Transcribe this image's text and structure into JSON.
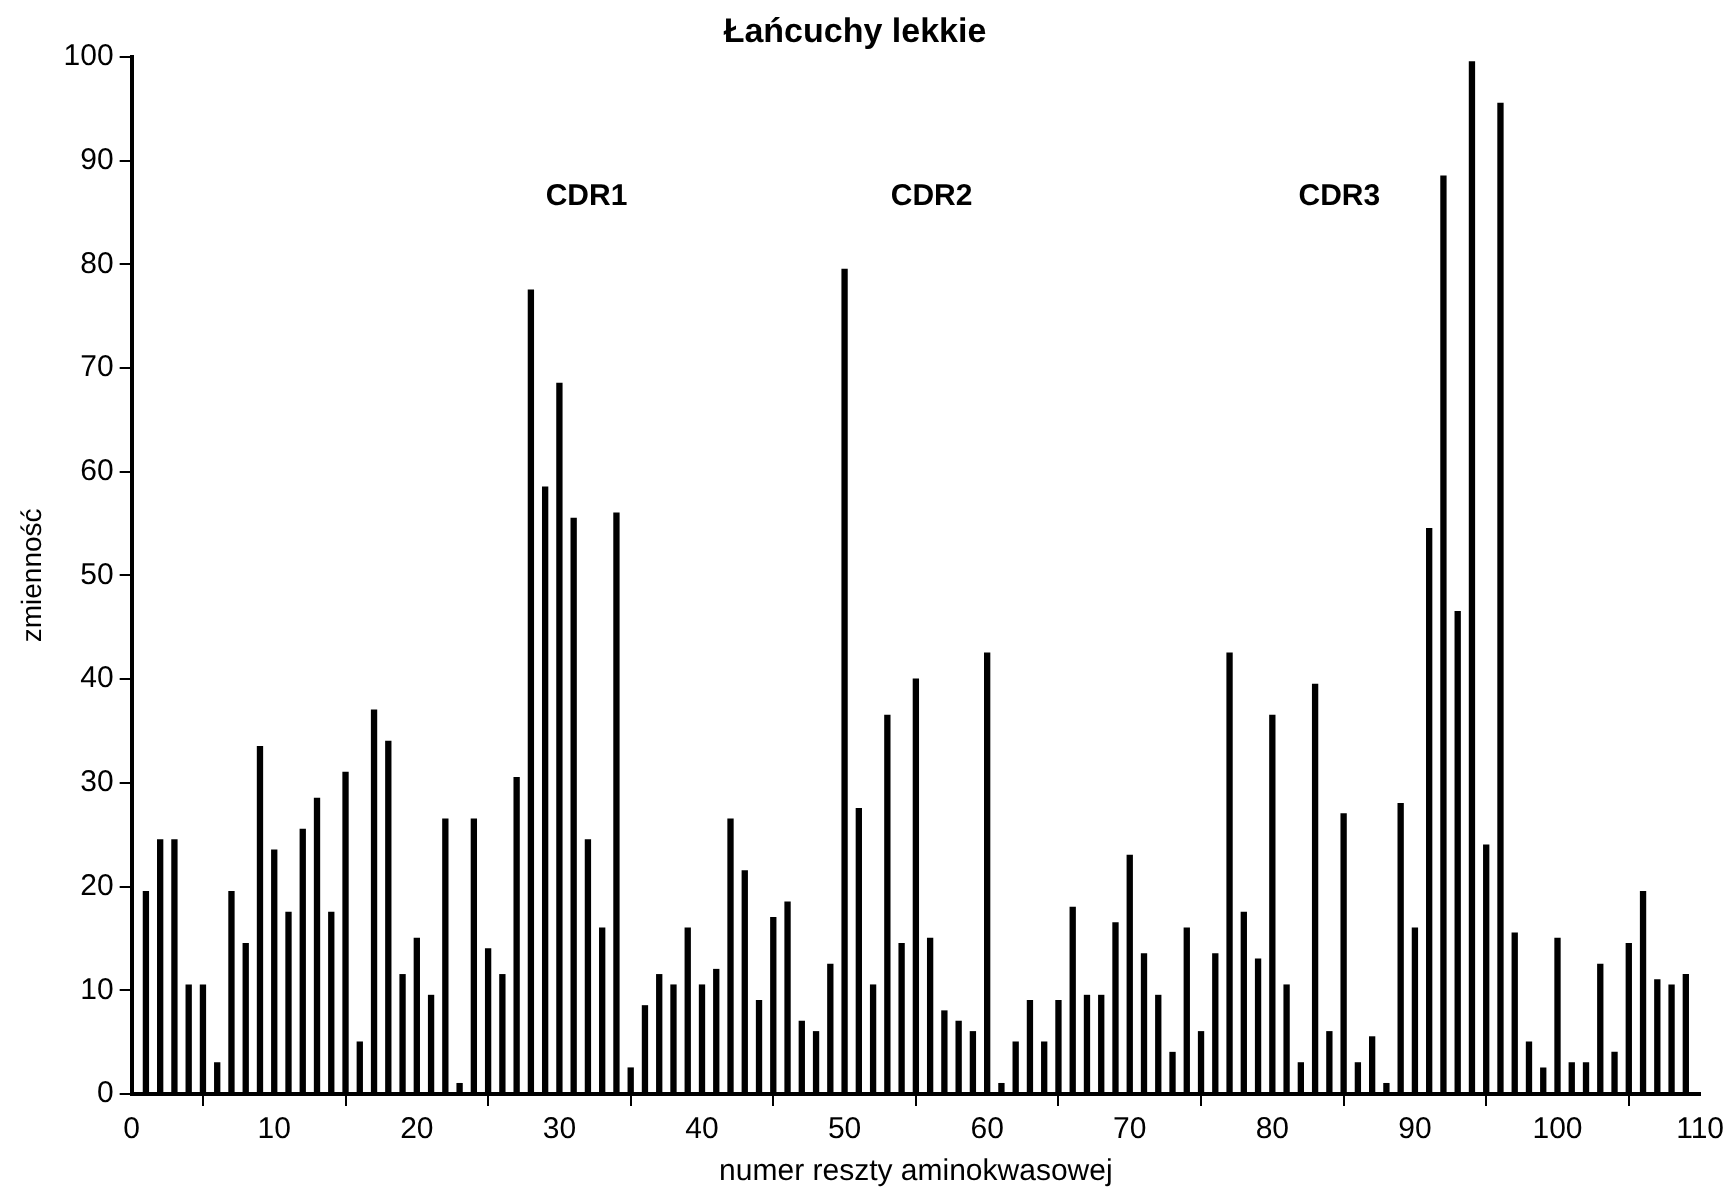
{
  "chart_data": {
    "type": "bar",
    "title": "Łańcuchy lekkie",
    "xlabel": "numer reszty aminokwasowej",
    "ylabel": "zmienność",
    "x": [
      1,
      2,
      3,
      4,
      5,
      6,
      7,
      8,
      9,
      10,
      11,
      12,
      13,
      14,
      15,
      16,
      17,
      18,
      19,
      20,
      21,
      22,
      23,
      24,
      25,
      26,
      27,
      28,
      29,
      30,
      31,
      32,
      33,
      34,
      35,
      36,
      37,
      38,
      39,
      40,
      41,
      42,
      43,
      44,
      45,
      46,
      47,
      48,
      49,
      50,
      51,
      52,
      53,
      54,
      55,
      56,
      57,
      58,
      59,
      60,
      61,
      62,
      63,
      64,
      65,
      66,
      67,
      68,
      69,
      70,
      71,
      72,
      73,
      74,
      75,
      76,
      77,
      78,
      79,
      80,
      81,
      82,
      83,
      84,
      85,
      86,
      87,
      88,
      89,
      90,
      91,
      92,
      93,
      94,
      95,
      96,
      97,
      98,
      99,
      100,
      101,
      102,
      103,
      104,
      105,
      106,
      107,
      108,
      109
    ],
    "values": [
      19.5,
      24.5,
      24.5,
      10.5,
      10.5,
      3,
      19.5,
      14.5,
      33.5,
      23.5,
      17.5,
      25.5,
      28.5,
      17.5,
      31,
      5,
      37,
      34,
      11.5,
      15,
      9.5,
      26.5,
      1,
      26.5,
      14,
      11.5,
      30.5,
      77.5,
      58.5,
      68.5,
      55.5,
      24.5,
      16,
      56,
      2.5,
      8.5,
      11.5,
      10.5,
      16,
      10.5,
      12,
      26.5,
      21.5,
      9,
      17,
      18.5,
      7,
      6,
      12.5,
      79.5,
      27.5,
      10.5,
      36.5,
      14.5,
      40,
      15,
      8,
      7,
      6,
      42.5,
      1,
      5,
      9,
      5,
      9,
      18,
      9.5,
      9.5,
      16.5,
      23,
      13.5,
      9.5,
      4,
      16,
      6,
      13.5,
      42.5,
      17.5,
      13,
      36.5,
      10.5,
      3,
      39.5,
      6,
      27,
      3,
      5.5,
      1,
      28,
      16,
      54.5,
      88.5,
      46.5,
      99.5,
      24,
      95.5,
      15.5,
      5,
      2.5,
      15,
      3,
      3,
      12.5,
      4,
      14.5,
      19.5,
      11,
      10.5,
      11.5
    ],
    "color": "#000000",
    "xlim": [
      0,
      110
    ],
    "xticks": [
      0,
      10,
      20,
      30,
      40,
      50,
      60,
      70,
      80,
      90,
      100,
      110
    ],
    "ylim": [
      0,
      100
    ],
    "yticks": [
      0,
      10,
      20,
      30,
      40,
      50,
      60,
      70,
      80,
      90,
      100
    ],
    "annotations": [
      "CDR1",
      "CDR2",
      "CDR3"
    ]
  }
}
